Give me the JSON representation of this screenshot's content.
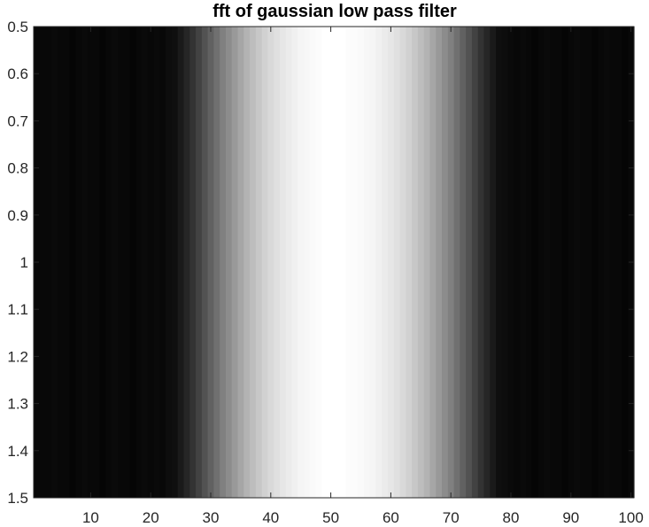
{
  "chart_data": {
    "type": "heatmap",
    "title": "fft of gaussian low pass filter",
    "xlabel": "",
    "ylabel": "",
    "colormap": "gray",
    "grid": false,
    "legend": "none",
    "xlim": [
      0.5,
      100.5
    ],
    "ylim": [
      0.5,
      1.5
    ],
    "y_direction": "reverse",
    "x_ticks": [
      10,
      20,
      30,
      40,
      50,
      60,
      70,
      80,
      90,
      100
    ],
    "x_tick_labels": [
      "10",
      "20",
      "30",
      "40",
      "50",
      "60",
      "70",
      "80",
      "90",
      "100"
    ],
    "y_ticks": [
      0.5,
      0.6,
      0.7,
      0.8,
      0.9,
      1,
      1.1,
      1.2,
      1.3,
      1.4,
      1.5
    ],
    "y_tick_labels": [
      "0.5",
      "0.6",
      "0.7",
      "0.8",
      "0.9",
      "1",
      "1.1",
      "1.2",
      "1.3",
      "1.4",
      "1.5"
    ],
    "rows": 1,
    "columns": 100,
    "values": [
      0.03,
      0.03,
      0.03,
      0.04,
      0.03,
      0.03,
      0.02,
      0.03,
      0.04,
      0.03,
      0.03,
      0.02,
      0.03,
      0.04,
      0.03,
      0.03,
      0.02,
      0.03,
      0.04,
      0.03,
      0.04,
      0.03,
      0.05,
      0.06,
      0.1,
      0.15,
      0.2,
      0.26,
      0.32,
      0.38,
      0.44,
      0.5,
      0.55,
      0.6,
      0.65,
      0.7,
      0.74,
      0.78,
      0.82,
      0.85,
      0.88,
      0.9,
      0.92,
      0.94,
      0.96,
      0.97,
      0.98,
      0.99,
      1.0,
      1.0,
      1.0,
      1.0,
      0.99,
      0.99,
      0.98,
      0.97,
      0.96,
      0.94,
      0.92,
      0.9,
      0.88,
      0.85,
      0.82,
      0.78,
      0.74,
      0.7,
      0.65,
      0.6,
      0.55,
      0.5,
      0.44,
      0.38,
      0.32,
      0.26,
      0.2,
      0.15,
      0.1,
      0.06,
      0.05,
      0.04,
      0.03,
      0.04,
      0.03,
      0.02,
      0.03,
      0.04,
      0.03,
      0.03,
      0.02,
      0.03,
      0.04,
      0.03,
      0.03,
      0.02,
      0.03,
      0.04,
      0.03,
      0.03,
      0.02,
      0.03
    ]
  }
}
